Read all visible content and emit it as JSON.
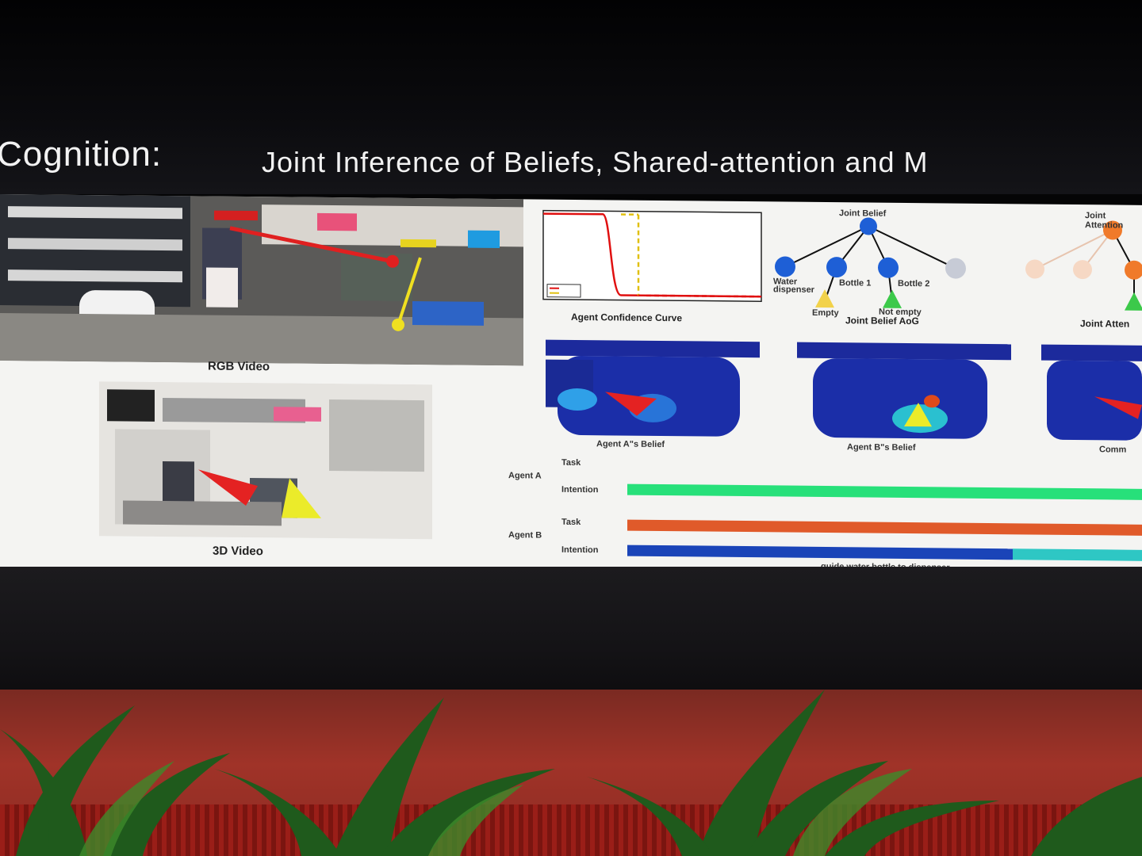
{
  "slide": {
    "title_main": "Cognition:",
    "title_sub": "Joint Inference of Beliefs, Shared-attention and M"
  },
  "panels": {
    "rgb_video": "RGB Video",
    "video_3d": "3D Video",
    "confidence_curve": "Agent Confidence Curve",
    "joint_belief_aog": "Joint Belief AoG",
    "joint_attention_aog": "Joint Atten",
    "agent_a_belief": "Agent A\"s Belief",
    "agent_b_belief": "Agent B\"s Belief",
    "common_belief": "Comm"
  },
  "aog": {
    "root": "Joint Belief",
    "nodes": [
      "Water dispenser",
      "Bottle 1",
      "Bottle 2"
    ],
    "leaves": [
      "Empty",
      "Not empty"
    ],
    "root2": "Joint Attention"
  },
  "timeline": {
    "agent_a": "Agent A",
    "agent_b": "Agent B",
    "task": "Task",
    "intention": "Intention",
    "caption": "guide water bottle to dispenser"
  },
  "colors": {
    "screen_bg": "#f4f4f2",
    "agent_a_intention": "#27e07a",
    "agent_b_task": "#e05a2a",
    "agent_b_intention": "#1a44b8",
    "agent_b_intention_tail": "#2ec7c4",
    "aog_node": "#1e5fd6",
    "aog_root2": "#f07a2a",
    "leaf_empty": "#f2d24a",
    "leaf_notempty": "#3cc94a"
  }
}
